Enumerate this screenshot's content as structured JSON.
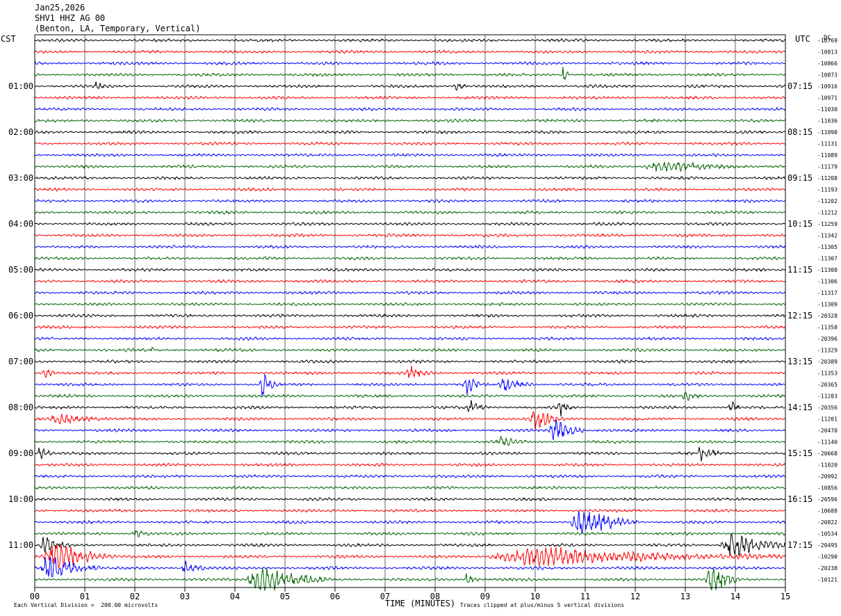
{
  "header": {
    "date": "Jan25,2026",
    "channel": "SHV1 HHZ AG 00",
    "location": "(Benton, LA, Temporary, Vertical)"
  },
  "axis": {
    "left_tz": "CST",
    "right_tz": "UTC",
    "dc_label": "DC",
    "xlabel": "TIME (MINUTES)"
  },
  "footer": {
    "division_note": "Each Vertical Division =  200.00 microvolts",
    "clip_note": "Traces clipped at plus/minus 5 vertical divisions"
  },
  "colors": {
    "trace_cycle": [
      "#000000",
      "#ff0000",
      "#0000ff",
      "#006400"
    ],
    "grid": "#000000",
    "background": "#ffffff"
  },
  "chart_data": {
    "type": "line",
    "title": "SHV1 HHZ AG 00",
    "xlim": [
      0,
      15
    ],
    "x_ticks": [
      "00",
      "01",
      "02",
      "03",
      "04",
      "05",
      "06",
      "07",
      "08",
      "09",
      "10",
      "11",
      "12",
      "13",
      "14",
      "15"
    ],
    "left_hour_labels": [
      {
        "trace": 4,
        "label": "01:00"
      },
      {
        "trace": 8,
        "label": "02:00"
      },
      {
        "trace": 12,
        "label": "03:00"
      },
      {
        "trace": 16,
        "label": "04:00"
      },
      {
        "trace": 20,
        "label": "05:00"
      },
      {
        "trace": 24,
        "label": "06:00"
      },
      {
        "trace": 28,
        "label": "07:00"
      },
      {
        "trace": 32,
        "label": "08:00"
      },
      {
        "trace": 36,
        "label": "09:00"
      },
      {
        "trace": 40,
        "label": "10:00"
      },
      {
        "trace": 44,
        "label": "11:00"
      }
    ],
    "right_hour_labels": [
      {
        "trace": 4,
        "label": "07:15"
      },
      {
        "trace": 8,
        "label": "08:15"
      },
      {
        "trace": 12,
        "label": "09:15"
      },
      {
        "trace": 16,
        "label": "10:15"
      },
      {
        "trace": 20,
        "label": "11:15"
      },
      {
        "trace": 24,
        "label": "12:15"
      },
      {
        "trace": 28,
        "label": "13:15"
      },
      {
        "trace": 32,
        "label": "14:15"
      },
      {
        "trace": 36,
        "label": "15:15"
      },
      {
        "trace": 40,
        "label": "16:15"
      },
      {
        "trace": 44,
        "label": "17:15"
      }
    ],
    "dc_offsets": [
      "-10769",
      "-10813",
      "-10866",
      "-10873",
      "-10916",
      "-10971",
      "-11030",
      "-11036",
      "-11098",
      "-11131",
      "-11089",
      "-11179",
      "-11208",
      "-11193",
      "-11202",
      "-11212",
      "-11259",
      "-11342",
      "-11305",
      "-11307",
      "-11308",
      "-11306",
      "-11317",
      "-11309",
      "-20328",
      "-11358",
      "-20396",
      "-11329",
      "-20389",
      "-11353",
      "-20365",
      "-11283",
      "-20356",
      "-11201",
      "-20470",
      "-11140",
      "-20668",
      "-11020",
      "-20992",
      "-10856",
      "-20596",
      "-10688",
      "-20822",
      "-10534",
      "-20495",
      "-10290",
      "-20238",
      "-10121"
    ],
    "trace_count": 48,
    "events": [
      {
        "trace": 3,
        "minute": 10.55,
        "amp": 2.4,
        "dur": 0.12
      },
      {
        "trace": 4,
        "minute": 8.4,
        "amp": 1.0,
        "dur": 0.3
      },
      {
        "trace": 4,
        "minute": 1.2,
        "amp": 0.8,
        "dur": 0.2
      },
      {
        "trace": 11,
        "minute": 12.5,
        "amp": 0.7,
        "dur": 2.0
      },
      {
        "trace": 27,
        "minute": 2.3,
        "amp": 1.4,
        "dur": 0.1
      },
      {
        "trace": 29,
        "minute": 0.2,
        "amp": 0.8,
        "dur": 0.3
      },
      {
        "trace": 29,
        "minute": 7.5,
        "amp": 1.0,
        "dur": 0.5
      },
      {
        "trace": 30,
        "minute": 4.55,
        "amp": 1.9,
        "dur": 0.3
      },
      {
        "trace": 30,
        "minute": 8.6,
        "amp": 2.2,
        "dur": 0.3
      },
      {
        "trace": 30,
        "minute": 9.4,
        "amp": 1.0,
        "dur": 0.6
      },
      {
        "trace": 31,
        "minute": 13.0,
        "amp": 0.8,
        "dur": 0.3
      },
      {
        "trace": 32,
        "minute": 8.7,
        "amp": 1.0,
        "dur": 0.4
      },
      {
        "trace": 32,
        "minute": 10.5,
        "amp": 1.1,
        "dur": 0.3
      },
      {
        "trace": 32,
        "minute": 13.9,
        "amp": 1.2,
        "dur": 0.2
      },
      {
        "trace": 33,
        "minute": 0.5,
        "amp": 0.9,
        "dur": 1.0
      },
      {
        "trace": 33,
        "minute": 10.0,
        "amp": 1.8,
        "dur": 0.6
      },
      {
        "trace": 34,
        "minute": 10.4,
        "amp": 1.6,
        "dur": 0.7
      },
      {
        "trace": 35,
        "minute": 9.3,
        "amp": 0.8,
        "dur": 0.5
      },
      {
        "trace": 36,
        "minute": 0.1,
        "amp": 1.0,
        "dur": 0.3
      },
      {
        "trace": 36,
        "minute": 13.3,
        "amp": 1.1,
        "dur": 0.5
      },
      {
        "trace": 42,
        "minute": 10.9,
        "amp": 2.2,
        "dur": 1.2
      },
      {
        "trace": 43,
        "minute": 2.0,
        "amp": 1.0,
        "dur": 0.3
      },
      {
        "trace": 44,
        "minute": 0.2,
        "amp": 1.4,
        "dur": 0.5
      },
      {
        "trace": 44,
        "minute": 13.9,
        "amp": 2.0,
        "dur": 1.1
      },
      {
        "trace": 45,
        "minute": 0.4,
        "amp": 2.6,
        "dur": 1.2
      },
      {
        "trace": 45,
        "minute": 10.0,
        "amp": 1.3,
        "dur": 5.0
      },
      {
        "trace": 46,
        "minute": 0.3,
        "amp": 2.2,
        "dur": 1.0
      },
      {
        "trace": 46,
        "minute": 3.0,
        "amp": 0.9,
        "dur": 0.5
      },
      {
        "trace": 47,
        "minute": 4.5,
        "amp": 2.4,
        "dur": 1.4
      },
      {
        "trace": 47,
        "minute": 8.6,
        "amp": 1.0,
        "dur": 0.3
      },
      {
        "trace": 47,
        "minute": 13.5,
        "amp": 2.6,
        "dur": 0.6
      }
    ]
  }
}
